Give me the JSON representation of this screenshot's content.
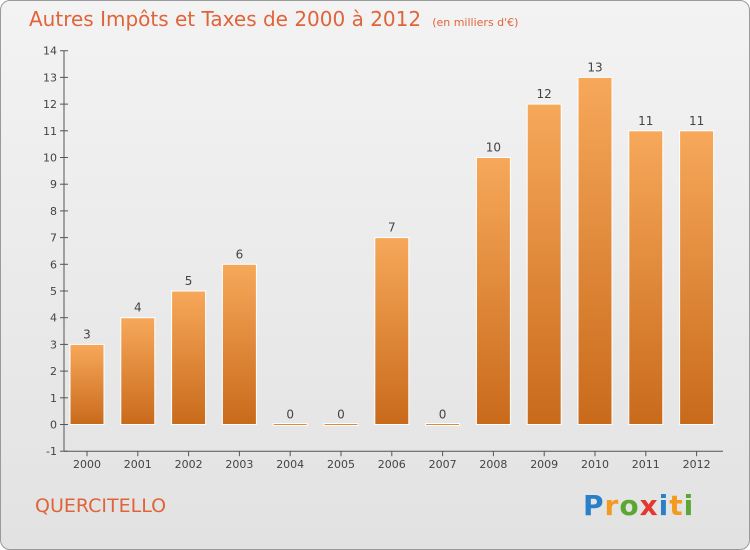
{
  "title": "Autres Impôts et Taxes de 2000 à 2012",
  "subtitle": "(en milliers d'€)",
  "commune": "QUERCITELLO",
  "logo": {
    "text": "Proxiti",
    "colors": [
      "#2a7fc9",
      "#f29b1e",
      "#5aa832",
      "#e2392f",
      "#2a7fc9",
      "#f29b1e",
      "#5aa832"
    ]
  },
  "colors": {
    "bar_top": "#f7a85a",
    "bar_bottom": "#c96a1b",
    "accent_text": "#e0643a"
  },
  "chart_data": {
    "type": "bar",
    "categories": [
      "2000",
      "2001",
      "2002",
      "2003",
      "2004",
      "2005",
      "2006",
      "2007",
      "2008",
      "2009",
      "2010",
      "2011",
      "2012"
    ],
    "values": [
      3,
      4,
      5,
      6,
      0,
      0,
      7,
      0,
      10,
      12,
      13,
      11,
      11
    ],
    "value_labels": [
      "3",
      "4",
      "5",
      "6",
      "0",
      "0",
      "7",
      "0",
      "10",
      "12",
      "13",
      "11",
      "11"
    ],
    "yticks": [
      "-1",
      "0",
      "1",
      "2",
      "3",
      "4",
      "5",
      "6",
      "7",
      "8",
      "9",
      "10",
      "11",
      "12",
      "13",
      "14"
    ],
    "ylim": [
      -1,
      14
    ],
    "grid": false,
    "legend": "none"
  }
}
